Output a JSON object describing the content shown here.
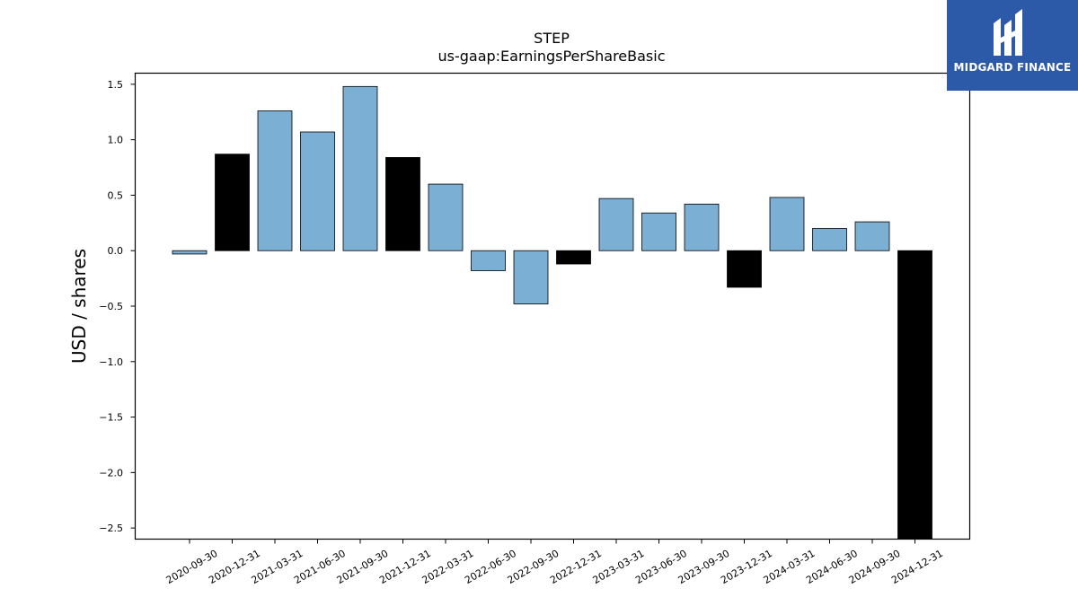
{
  "chart_data": {
    "type": "bar",
    "title": "STEP",
    "subtitle": "us-gaap:EarningsPerShareBasic",
    "xlabel": "",
    "ylabel": "USD / shares",
    "ylim": [
      -2.6,
      1.6
    ],
    "yticks": [
      -2.5,
      -2.0,
      -1.5,
      -1.0,
      -0.5,
      0.0,
      0.5,
      1.0,
      1.5
    ],
    "grid": false,
    "legend": "none",
    "categories": [
      "2020-09-30",
      "2020-12-31",
      "2021-03-31",
      "2021-06-30",
      "2021-09-30",
      "2021-12-31",
      "2022-03-31",
      "2022-06-30",
      "2022-09-30",
      "2022-12-31",
      "2023-03-31",
      "2023-06-30",
      "2023-09-30",
      "2023-12-31",
      "2024-03-31",
      "2024-06-30",
      "2024-09-30",
      "2024-12-31"
    ],
    "values": [
      -0.03,
      0.87,
      1.26,
      1.07,
      1.48,
      0.84,
      0.6,
      -0.18,
      -0.48,
      -0.12,
      0.47,
      0.34,
      0.42,
      -0.33,
      0.48,
      0.2,
      0.26,
      -2.6
    ],
    "bar_types": [
      "quarter",
      "annual",
      "quarter",
      "quarter",
      "quarter",
      "annual",
      "quarter",
      "quarter",
      "quarter",
      "annual",
      "quarter",
      "quarter",
      "quarter",
      "annual",
      "quarter",
      "quarter",
      "quarter",
      "annual"
    ],
    "colors": {
      "quarter": "#7bafd4",
      "annual": "#000000"
    }
  },
  "logo": {
    "text": "MIDGARD FINANCE",
    "icon": "midgard-finance-logo-icon",
    "background": "#2c5aa8"
  }
}
